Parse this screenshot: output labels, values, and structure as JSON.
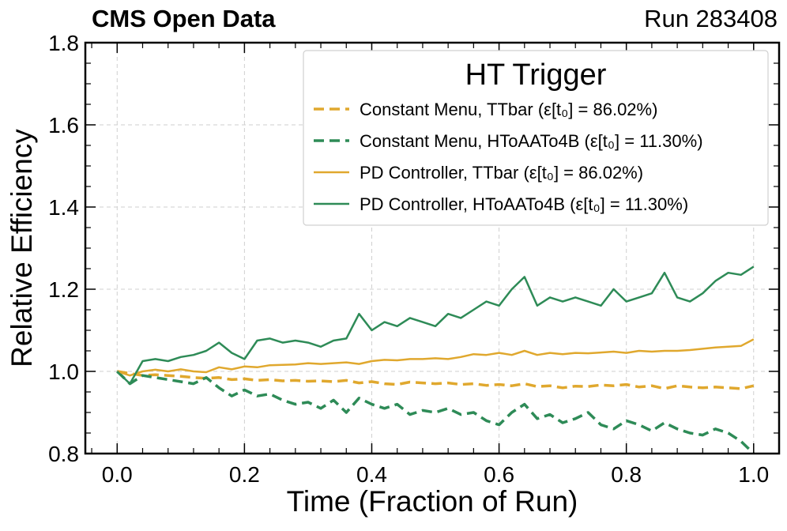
{
  "header": {
    "left": "CMS Open Data",
    "right": "Run 283408"
  },
  "chart_data": {
    "type": "line",
    "xlabel": "Time (Fraction of Run)",
    "ylabel": "Relative Efficiency",
    "xlim": [
      -0.05,
      1.04
    ],
    "ylim": [
      0.8,
      1.8
    ],
    "xticks": [
      "0.0",
      "0.2",
      "0.4",
      "0.6",
      "0.8",
      "1.0"
    ],
    "yticks": [
      "0.8",
      "1.0",
      "1.2",
      "1.4",
      "1.6",
      "1.8"
    ],
    "grid": true,
    "legend": {
      "title": "HT Trigger",
      "placement": "top-right"
    },
    "series": [
      {
        "name": "Constant Menu, TTbar (ε[t₀] = 86.02%)",
        "label_main": "Constant Menu, TTbar",
        "label_eff": "(ε[t₀] = 86.02%)",
        "color": "#e0a82e",
        "style": "dashed",
        "x": [
          0.0,
          0.02,
          0.04,
          0.06,
          0.08,
          0.1,
          0.12,
          0.14,
          0.16,
          0.18,
          0.2,
          0.22,
          0.24,
          0.26,
          0.28,
          0.3,
          0.32,
          0.34,
          0.36,
          0.38,
          0.4,
          0.42,
          0.44,
          0.46,
          0.48,
          0.5,
          0.52,
          0.54,
          0.56,
          0.58,
          0.6,
          0.62,
          0.64,
          0.66,
          0.68,
          0.7,
          0.72,
          0.74,
          0.76,
          0.78,
          0.8,
          0.82,
          0.84,
          0.86,
          0.88,
          0.9,
          0.92,
          0.94,
          0.96,
          0.98,
          1.0
        ],
        "y": [
          1.0,
          0.995,
          0.99,
          0.992,
          0.99,
          0.988,
          0.985,
          0.983,
          0.985,
          0.98,
          0.982,
          0.978,
          0.98,
          0.977,
          0.978,
          0.976,
          0.977,
          0.975,
          0.978,
          0.972,
          0.975,
          0.97,
          0.968,
          0.974,
          0.972,
          0.97,
          0.972,
          0.968,
          0.97,
          0.966,
          0.968,
          0.965,
          0.97,
          0.963,
          0.965,
          0.96,
          0.964,
          0.963,
          0.967,
          0.965,
          0.968,
          0.962,
          0.965,
          0.958,
          0.965,
          0.962,
          0.96,
          0.962,
          0.96,
          0.958,
          0.965
        ]
      },
      {
        "name": "Constant Menu, HToAATo4B (ε[t₀] = 11.30%)",
        "label_main": "Constant Menu, HToAATo4B",
        "label_eff": "(ε[t₀] = 11.30%)",
        "color": "#2e8b57",
        "style": "dashed",
        "x": [
          0.0,
          0.02,
          0.04,
          0.06,
          0.08,
          0.1,
          0.12,
          0.14,
          0.16,
          0.18,
          0.2,
          0.22,
          0.24,
          0.26,
          0.28,
          0.3,
          0.32,
          0.34,
          0.36,
          0.38,
          0.4,
          0.42,
          0.44,
          0.46,
          0.48,
          0.5,
          0.52,
          0.54,
          0.56,
          0.58,
          0.6,
          0.62,
          0.64,
          0.66,
          0.68,
          0.7,
          0.72,
          0.74,
          0.76,
          0.78,
          0.8,
          0.82,
          0.84,
          0.86,
          0.88,
          0.9,
          0.92,
          0.94,
          0.96,
          0.98,
          1.0
        ],
        "y": [
          1.0,
          0.97,
          0.99,
          0.985,
          0.98,
          0.975,
          0.97,
          0.985,
          0.96,
          0.94,
          0.955,
          0.94,
          0.945,
          0.93,
          0.92,
          0.925,
          0.91,
          0.93,
          0.9,
          0.935,
          0.92,
          0.91,
          0.92,
          0.895,
          0.905,
          0.9,
          0.91,
          0.895,
          0.9,
          0.88,
          0.87,
          0.9,
          0.92,
          0.885,
          0.895,
          0.875,
          0.885,
          0.9,
          0.87,
          0.86,
          0.88,
          0.87,
          0.855,
          0.875,
          0.86,
          0.85,
          0.845,
          0.86,
          0.85,
          0.83,
          0.8
        ]
      },
      {
        "name": "PD Controller, TTbar (ε[t₀] = 86.02%)",
        "label_main": "PD Controller, TTbar",
        "label_eff": "(ε[t₀] = 86.02%)",
        "color": "#e0a82e",
        "style": "solid",
        "x": [
          0.0,
          0.02,
          0.04,
          0.06,
          0.08,
          0.1,
          0.12,
          0.14,
          0.16,
          0.18,
          0.2,
          0.22,
          0.24,
          0.26,
          0.28,
          0.3,
          0.32,
          0.34,
          0.36,
          0.38,
          0.4,
          0.42,
          0.44,
          0.46,
          0.48,
          0.5,
          0.52,
          0.54,
          0.56,
          0.58,
          0.6,
          0.62,
          0.64,
          0.66,
          0.68,
          0.7,
          0.72,
          0.74,
          0.76,
          0.78,
          0.8,
          0.82,
          0.84,
          0.86,
          0.88,
          0.9,
          0.92,
          0.94,
          0.96,
          0.98,
          1.0
        ],
        "y": [
          1.0,
          0.99,
          1.0,
          1.004,
          1.0,
          1.005,
          1.0,
          0.998,
          1.01,
          1.005,
          1.012,
          1.01,
          1.015,
          1.016,
          1.017,
          1.02,
          1.018,
          1.02,
          1.022,
          1.018,
          1.025,
          1.028,
          1.027,
          1.03,
          1.03,
          1.032,
          1.03,
          1.035,
          1.042,
          1.04,
          1.045,
          1.04,
          1.05,
          1.04,
          1.045,
          1.042,
          1.045,
          1.044,
          1.046,
          1.048,
          1.045,
          1.05,
          1.048,
          1.05,
          1.05,
          1.052,
          1.055,
          1.058,
          1.06,
          1.062,
          1.078
        ]
      },
      {
        "name": "PD Controller, HToAATo4B (ε[t₀] = 11.30%)",
        "label_main": "PD Controller, HToAATo4B",
        "label_eff": "(ε[t₀] = 11.30%)",
        "color": "#2e8b57",
        "style": "solid",
        "x": [
          0.0,
          0.02,
          0.04,
          0.06,
          0.08,
          0.1,
          0.12,
          0.14,
          0.16,
          0.18,
          0.2,
          0.22,
          0.24,
          0.26,
          0.28,
          0.3,
          0.32,
          0.34,
          0.36,
          0.38,
          0.4,
          0.42,
          0.44,
          0.46,
          0.48,
          0.5,
          0.52,
          0.54,
          0.56,
          0.58,
          0.6,
          0.62,
          0.64,
          0.66,
          0.68,
          0.7,
          0.72,
          0.74,
          0.76,
          0.78,
          0.8,
          0.82,
          0.84,
          0.86,
          0.88,
          0.9,
          0.92,
          0.94,
          0.96,
          0.98,
          1.0
        ],
        "y": [
          1.0,
          0.97,
          1.025,
          1.03,
          1.025,
          1.035,
          1.04,
          1.05,
          1.07,
          1.045,
          1.03,
          1.075,
          1.08,
          1.07,
          1.075,
          1.07,
          1.06,
          1.075,
          1.08,
          1.14,
          1.1,
          1.12,
          1.11,
          1.13,
          1.12,
          1.11,
          1.14,
          1.13,
          1.15,
          1.17,
          1.16,
          1.2,
          1.23,
          1.16,
          1.18,
          1.17,
          1.18,
          1.17,
          1.16,
          1.2,
          1.17,
          1.18,
          1.19,
          1.24,
          1.18,
          1.17,
          1.19,
          1.22,
          1.24,
          1.235,
          1.255
        ]
      }
    ]
  }
}
